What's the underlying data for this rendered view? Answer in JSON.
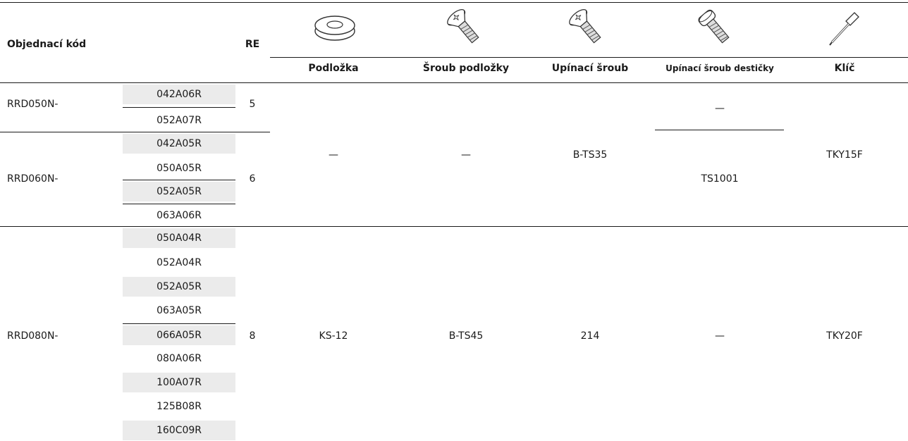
{
  "header": {
    "order_code": "Objednací kód",
    "re": "RE",
    "columns": [
      {
        "label": "Podložka",
        "icon": "washer-icon"
      },
      {
        "label": "Šroub podložky",
        "icon": "torx-countersunk-screw-icon"
      },
      {
        "label": "Upínací šroub",
        "icon": "torx-countersunk-screw-icon"
      },
      {
        "label": "Upínací šroub destičky",
        "icon": "torx-pan-head-screw-icon"
      },
      {
        "label": "Klíč",
        "icon": "torx-key-icon"
      }
    ]
  },
  "groups": [
    {
      "prefix": "RRD050N-",
      "re": "5",
      "codes": [
        "042A06R",
        "052A07R"
      ]
    },
    {
      "prefix": "RRD060N-",
      "re": "6",
      "codes": [
        "042A05R",
        "050A05R",
        "052A05R",
        "063A06R"
      ]
    },
    {
      "prefix": "RRD080N-",
      "re": "8",
      "codes": [
        "050A04R",
        "052A04R",
        "052A05R",
        "063A05R",
        "066A05R",
        "080A06R",
        "100A07R",
        "125B08R",
        "160C09R"
      ]
    }
  ],
  "accessories": {
    "small": {
      "podlozka": "—",
      "sroub_podlozky": "—",
      "upinaci_sroub": "B-TS35",
      "upinaci_sroub_desticky_050": "—",
      "upinaci_sroub_desticky_060": "TS1001",
      "klic": "TKY15F"
    },
    "large": {
      "podlozka": "KS-12",
      "sroub_podlozky": "B-TS45",
      "upinaci_sroub": "214",
      "upinaci_sroub_desticky": "—",
      "klic": "TKY20F"
    }
  }
}
